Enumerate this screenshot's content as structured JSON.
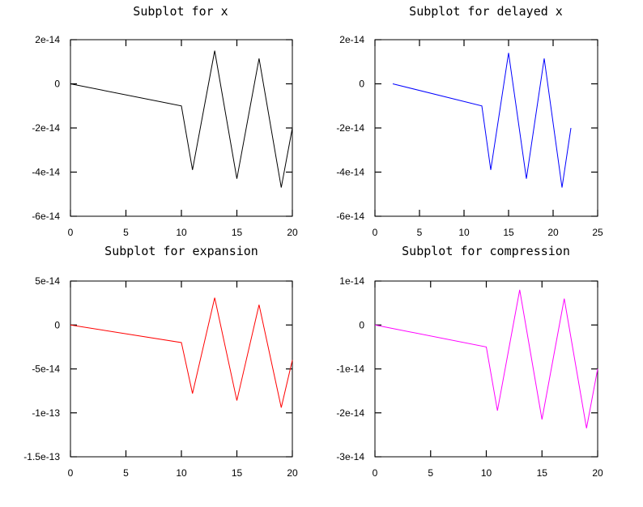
{
  "figure_title": "",
  "chart_data": [
    {
      "type": "line",
      "title": "Subplot for x",
      "xlabel": "",
      "ylabel": "",
      "xlim": [
        0,
        20
      ],
      "ylim": [
        -6e-14,
        2e-14
      ],
      "xticks": [
        0,
        5,
        10,
        15,
        20
      ],
      "xtick_labels": [
        "0",
        "5",
        "10",
        "15",
        "20"
      ],
      "yticks": [
        2e-14,
        0,
        -2e-14,
        -4e-14,
        -6e-14
      ],
      "ytick_labels": [
        "2e-14",
        "0",
        "-2e-14",
        "-4e-14",
        "-6e-14"
      ],
      "grid": false,
      "series": [
        {
          "name": "x",
          "color": "#000000",
          "x": [
            0,
            10,
            11,
            13,
            15,
            17,
            19,
            20
          ],
          "y": [
            0,
            -1e-14,
            -3.9e-14,
            1.5e-14,
            -4.3e-14,
            1.15e-14,
            -4.7e-14,
            -2e-14
          ]
        }
      ]
    },
    {
      "type": "line",
      "title": "Subplot for delayed x",
      "xlabel": "",
      "ylabel": "",
      "xlim": [
        0,
        25
      ],
      "ylim": [
        -6e-14,
        2e-14
      ],
      "xticks": [
        0,
        5,
        10,
        15,
        20,
        25
      ],
      "xtick_labels": [
        "0",
        "5",
        "10",
        "15",
        "20",
        "25"
      ],
      "yticks": [
        2e-14,
        0,
        -2e-14,
        -4e-14,
        -6e-14
      ],
      "ytick_labels": [
        "2e-14",
        "0",
        "-2e-14",
        "-4e-14",
        "-6e-14"
      ],
      "grid": false,
      "series": [
        {
          "name": "delayed x",
          "color": "#0000ff",
          "x": [
            2,
            12,
            13,
            15,
            17,
            19,
            21,
            22
          ],
          "y": [
            0,
            -1e-14,
            -3.9e-14,
            1.4e-14,
            -4.3e-14,
            1.15e-14,
            -4.7e-14,
            -2e-14
          ]
        }
      ]
    },
    {
      "type": "line",
      "title": "Subplot for expansion",
      "xlabel": "",
      "ylabel": "",
      "xlim": [
        0,
        20
      ],
      "ylim": [
        -1.5e-13,
        5e-14
      ],
      "xticks": [
        0,
        5,
        10,
        15,
        20
      ],
      "xtick_labels": [
        "0",
        "5",
        "10",
        "15",
        "20"
      ],
      "yticks": [
        5e-14,
        0,
        -5e-14,
        -1e-13,
        -1.5e-13
      ],
      "ytick_labels": [
        "5e-14",
        "0",
        "-5e-14",
        "-1e-13",
        "-1.5e-13"
      ],
      "grid": false,
      "series": [
        {
          "name": "expansion",
          "color": "#ff0000",
          "x": [
            0,
            10,
            11,
            13,
            15,
            17,
            19,
            20
          ],
          "y": [
            0,
            -2e-14,
            -7.8e-14,
            3.1e-14,
            -8.6e-14,
            2.3e-14,
            -9.4e-14,
            -4e-14
          ]
        }
      ]
    },
    {
      "type": "line",
      "title": "Subplot for compression",
      "xlabel": "",
      "ylabel": "",
      "xlim": [
        0,
        20
      ],
      "ylim": [
        -3e-14,
        1e-14
      ],
      "xticks": [
        0,
        5,
        10,
        15,
        20
      ],
      "xtick_labels": [
        "0",
        "5",
        "10",
        "15",
        "20"
      ],
      "yticks": [
        1e-14,
        0,
        -1e-14,
        -2e-14,
        -3e-14
      ],
      "ytick_labels": [
        "1e-14",
        "0",
        "-1e-14",
        "-2e-14",
        "-3e-14"
      ],
      "grid": false,
      "series": [
        {
          "name": "compression",
          "color": "#ff00ff",
          "x": [
            0,
            10,
            11,
            13,
            15,
            17,
            19,
            20
          ],
          "y": [
            0,
            -5e-15,
            -1.95e-14,
            8e-15,
            -2.15e-14,
            6e-15,
            -2.35e-14,
            -1e-14
          ]
        }
      ]
    }
  ]
}
